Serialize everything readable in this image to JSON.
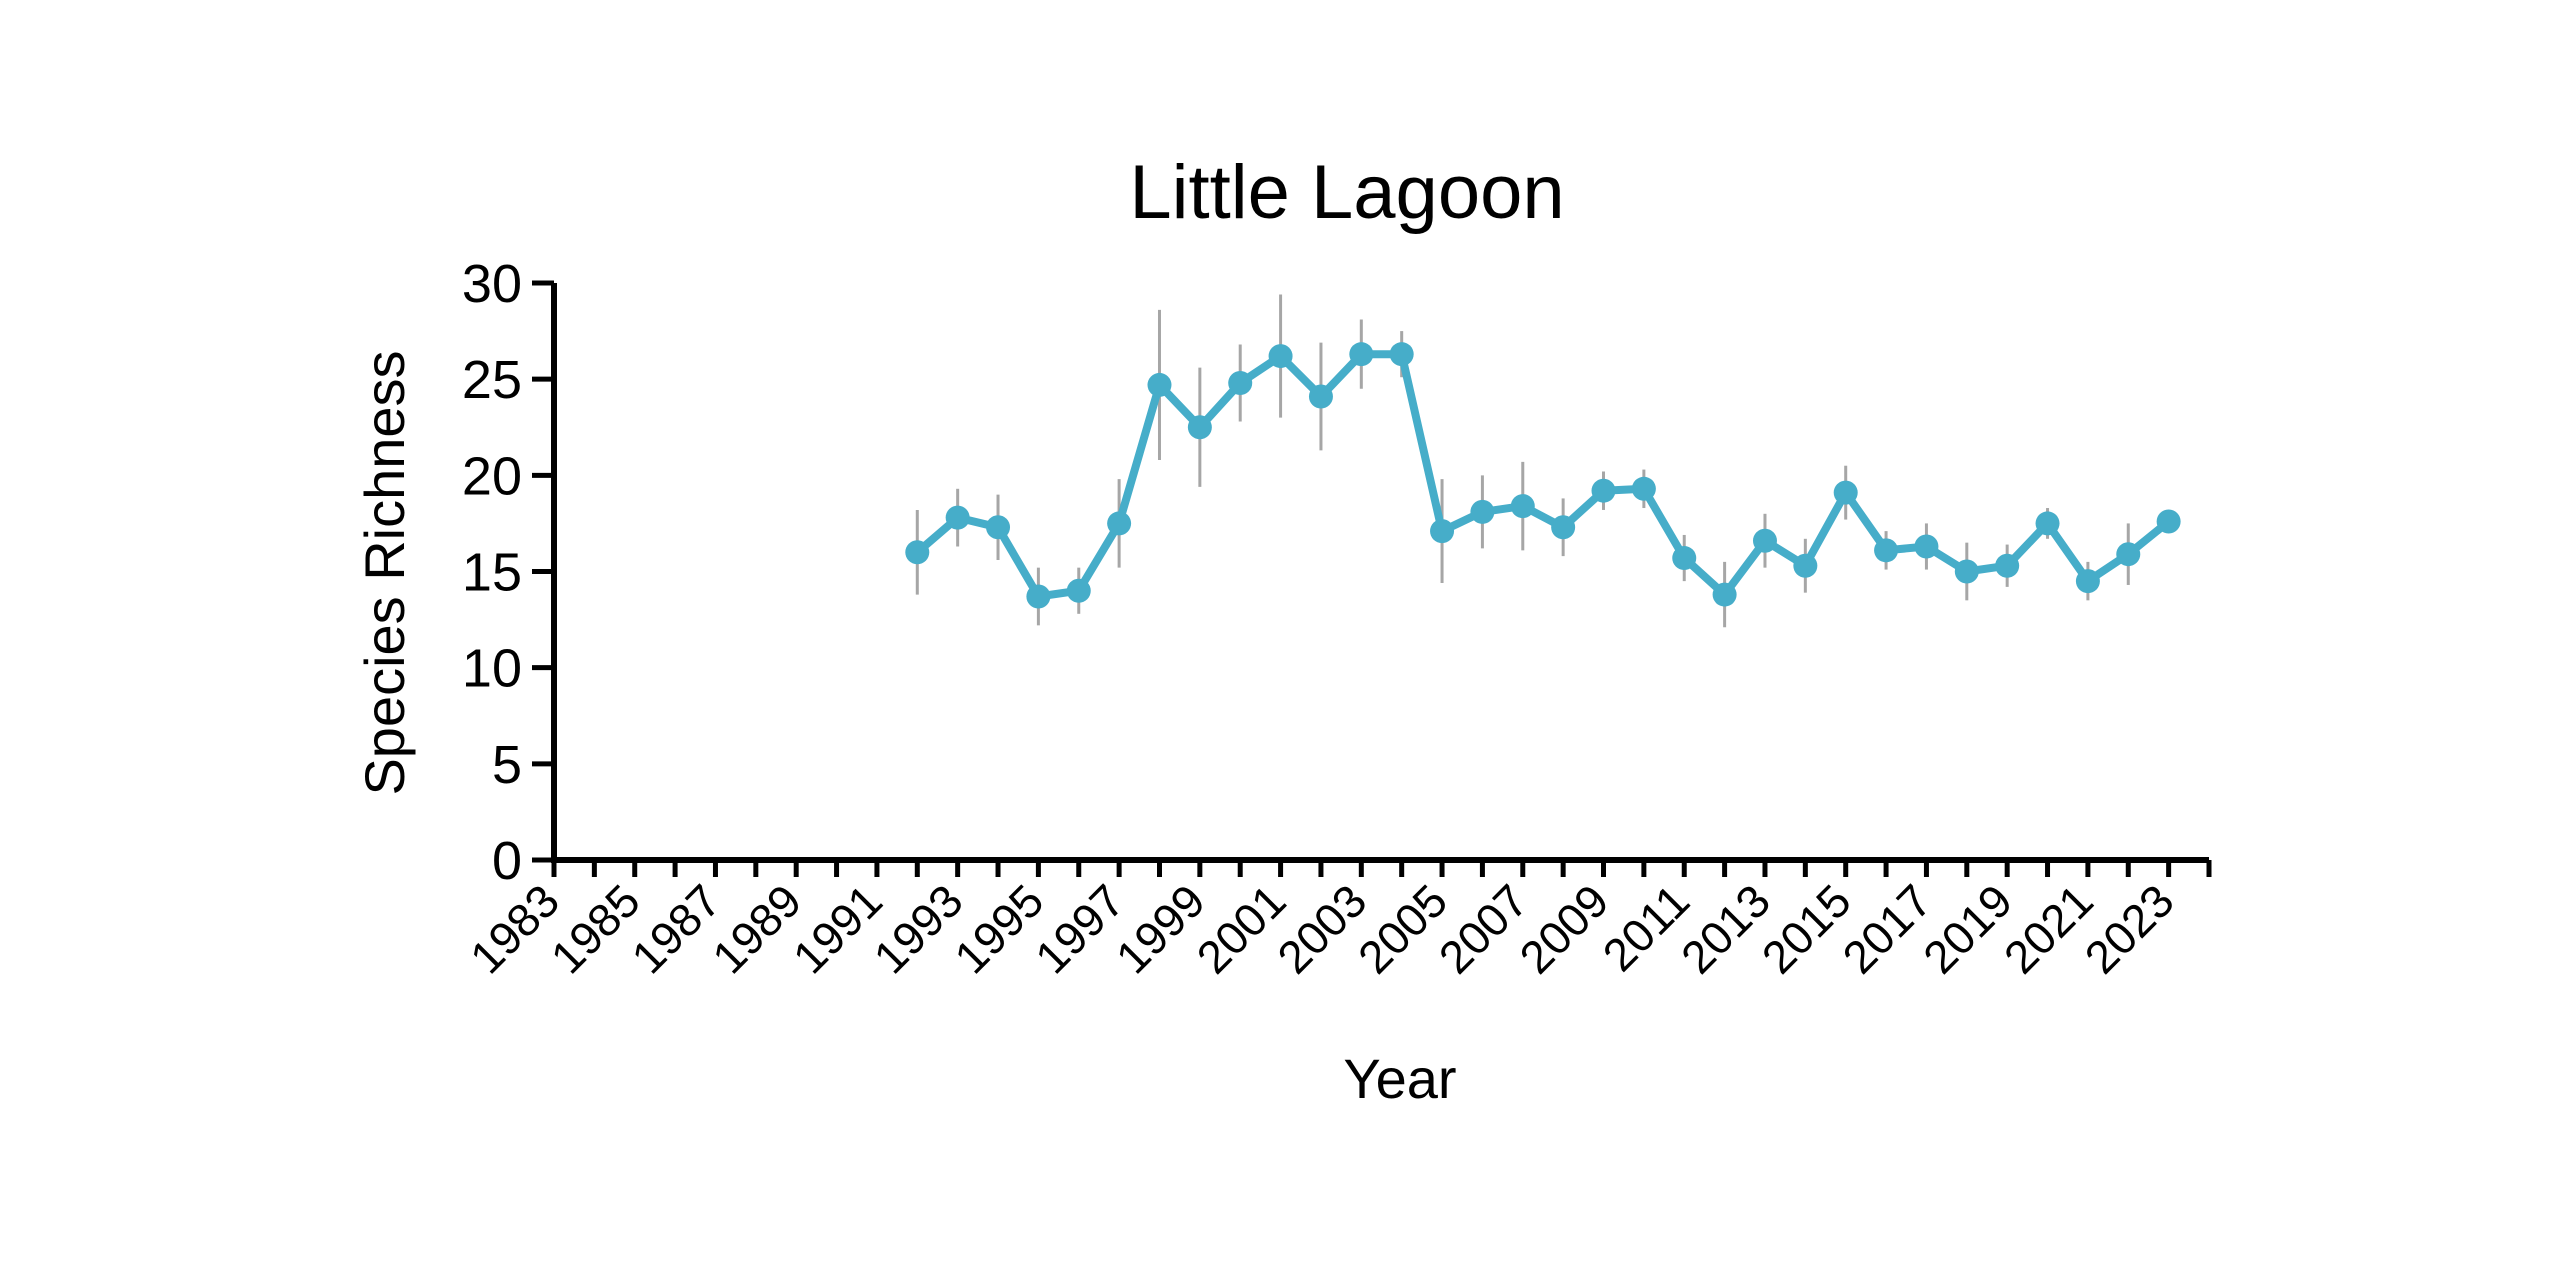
{
  "chart_data": {
    "type": "line",
    "title": "Little Lagoon",
    "xlabel": "Year",
    "ylabel": "Species Richness",
    "xlim": [
      1983,
      2024
    ],
    "ylim": [
      0,
      30
    ],
    "y_ticks": [
      0,
      5,
      10,
      15,
      20,
      25,
      30
    ],
    "x_tick_labels": [
      "1983",
      "1985",
      "1987",
      "1989",
      "1991",
      "1993",
      "1995",
      "1997",
      "1999",
      "2001",
      "2003",
      "2005",
      "2007",
      "2009",
      "2011",
      "2013",
      "2015",
      "2017",
      "2019",
      "2021",
      "2023"
    ],
    "grid": false,
    "legend": "none",
    "colors": {
      "line": "#46ADC9",
      "error_bars": "#A6A6A6",
      "axes": "#000000"
    },
    "series": [
      {
        "x": [
          1992,
          1993,
          1994,
          1995,
          1996,
          1997,
          1998,
          1999,
          2000,
          2001,
          2002,
          2003,
          2004,
          2005,
          2006,
          2007,
          2008,
          2009,
          2010,
          2011,
          2012,
          2013,
          2014,
          2015,
          2016,
          2017,
          2018,
          2019,
          2020,
          2021,
          2022,
          2023
        ],
        "y": [
          16.0,
          17.8,
          17.3,
          13.7,
          14.0,
          17.5,
          24.7,
          22.5,
          24.8,
          26.2,
          24.1,
          26.3,
          26.3,
          17.1,
          18.1,
          18.4,
          17.3,
          19.2,
          19.3,
          15.7,
          13.8,
          16.6,
          15.3,
          19.1,
          16.1,
          16.3,
          15.0,
          15.3,
          17.5,
          14.5,
          15.9,
          17.6
        ],
        "error": [
          2.2,
          1.5,
          1.7,
          1.5,
          1.2,
          2.3,
          3.9,
          3.1,
          2.0,
          3.2,
          2.8,
          1.8,
          1.2,
          2.7,
          1.9,
          2.3,
          1.5,
          1.0,
          1.0,
          1.2,
          1.7,
          1.4,
          1.4,
          1.4,
          1.0,
          1.2,
          1.5,
          1.1,
          0.8,
          1.0,
          1.6,
          0.6
        ]
      }
    ]
  }
}
